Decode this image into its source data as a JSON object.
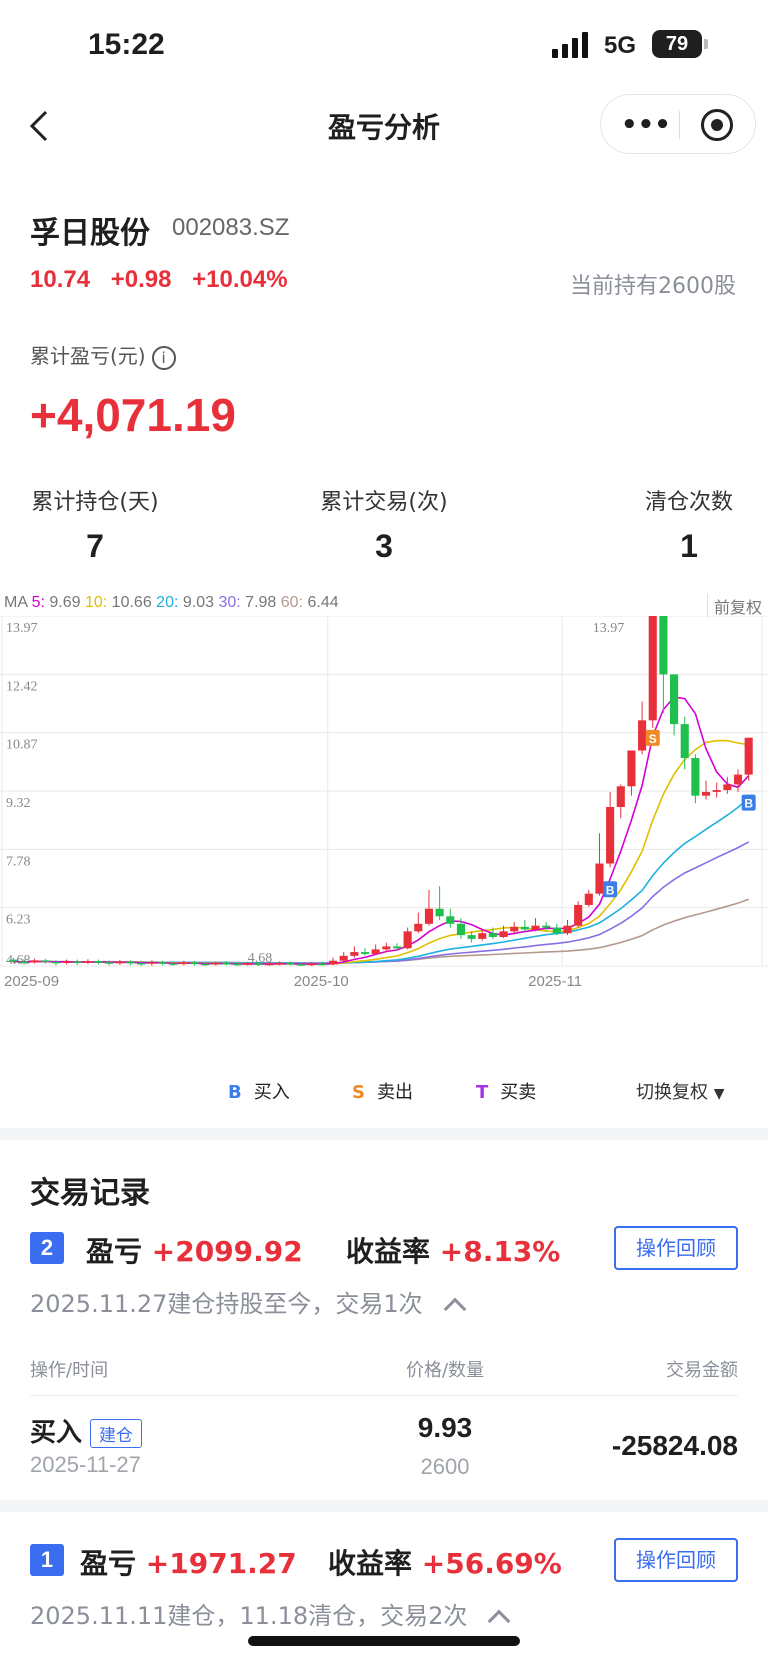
{
  "status_bar": {
    "time": "15:22",
    "network": "5G",
    "battery": "79"
  },
  "nav": {
    "title": "盈亏分析"
  },
  "stock": {
    "name": "孚日股份",
    "code": "002083.SZ",
    "price": "10.74",
    "change": "+0.98",
    "change_pct": "+10.04%",
    "holding": "当前持有2600股"
  },
  "pl": {
    "label": "累计盈亏(元)",
    "value": "+4,071.19"
  },
  "stats": [
    {
      "label": "累计持仓(天)",
      "value": "7"
    },
    {
      "label": "累计交易(次)",
      "value": "3"
    },
    {
      "label": "清仓次数",
      "value": "1"
    }
  ],
  "ma": {
    "prefix": "MA",
    "items": [
      {
        "key": "5:",
        "value": "9.69",
        "color": "#d400d4"
      },
      {
        "key": "10:",
        "value": "10.66",
        "color": "#e0c000"
      },
      {
        "key": "20:",
        "value": "9.03",
        "color": "#1fb0e0"
      },
      {
        "key": "30:",
        "value": "7.98",
        "color": "#8a6ee6"
      },
      {
        "key": "60:",
        "value": "6.44",
        "color": "#b39a8f"
      }
    ],
    "adjust_label": "前复权"
  },
  "chart_data": {
    "type": "candlestick",
    "y_ticks": [
      "13.97",
      "12.42",
      "10.87",
      "9.32",
      "7.78",
      "6.23",
      "4.68"
    ],
    "x_ticks": [
      "2025-09",
      "2025-10",
      "2025-11"
    ],
    "max_label": "13.97",
    "min_label": "4.68",
    "ylim": [
      4.68,
      13.97
    ],
    "colors": {
      "up": "#e8303b",
      "down": "#1fbf4d",
      "buy": "#3a7ee8",
      "sell": "#f08a24"
    },
    "candles": [
      [
        4.85,
        4.8,
        4.9,
        4.75
      ],
      [
        4.8,
        4.78,
        4.86,
        4.72
      ],
      [
        4.78,
        4.83,
        4.88,
        4.74
      ],
      [
        4.83,
        4.79,
        4.87,
        4.74
      ],
      [
        4.79,
        4.76,
        4.84,
        4.7
      ],
      [
        4.76,
        4.8,
        4.85,
        4.72
      ],
      [
        4.8,
        4.77,
        4.85,
        4.71
      ],
      [
        4.77,
        4.81,
        4.86,
        4.73
      ],
      [
        4.81,
        4.78,
        4.85,
        4.72
      ],
      [
        4.78,
        4.75,
        4.83,
        4.7
      ],
      [
        4.75,
        4.79,
        4.84,
        4.71
      ],
      [
        4.79,
        4.76,
        4.83,
        4.7
      ],
      [
        4.76,
        4.74,
        4.82,
        4.68
      ],
      [
        4.74,
        4.78,
        4.83,
        4.69
      ],
      [
        4.78,
        4.75,
        4.82,
        4.7
      ],
      [
        4.75,
        4.73,
        4.8,
        4.69
      ],
      [
        4.73,
        4.77,
        4.82,
        4.7
      ],
      [
        4.77,
        4.74,
        4.81,
        4.69
      ],
      [
        4.74,
        4.72,
        4.79,
        4.68
      ],
      [
        4.72,
        4.76,
        4.8,
        4.69
      ],
      [
        4.76,
        4.74,
        4.81,
        4.7
      ],
      [
        4.74,
        4.71,
        4.78,
        4.68
      ],
      [
        4.71,
        4.75,
        4.79,
        4.69
      ],
      [
        4.75,
        4.72,
        4.79,
        4.68
      ],
      [
        4.72,
        4.74,
        4.8,
        4.69
      ],
      [
        4.74,
        4.76,
        4.81,
        4.7
      ],
      [
        4.76,
        4.73,
        4.8,
        4.7
      ],
      [
        4.73,
        4.7,
        4.78,
        4.68
      ],
      [
        4.7,
        4.74,
        4.78,
        4.68
      ],
      [
        4.74,
        4.72,
        4.8,
        4.69
      ],
      [
        4.72,
        4.82,
        4.9,
        4.7
      ],
      [
        4.82,
        4.95,
        5.05,
        4.8
      ],
      [
        4.95,
        5.05,
        5.2,
        4.9
      ],
      [
        5.05,
        5.0,
        5.15,
        4.95
      ],
      [
        5.0,
        5.12,
        5.25,
        4.98
      ],
      [
        5.12,
        5.2,
        5.3,
        5.05
      ],
      [
        5.2,
        5.15,
        5.28,
        5.1
      ],
      [
        5.15,
        5.6,
        5.7,
        5.12
      ],
      [
        5.6,
        5.8,
        6.1,
        5.55
      ],
      [
        5.8,
        6.2,
        6.7,
        5.75
      ],
      [
        6.2,
        6.0,
        6.8,
        5.9
      ],
      [
        6.0,
        5.8,
        6.2,
        5.7
      ],
      [
        5.8,
        5.5,
        5.95,
        5.4
      ],
      [
        5.5,
        5.4,
        5.6,
        5.3
      ],
      [
        5.4,
        5.55,
        5.65,
        5.35
      ],
      [
        5.55,
        5.45,
        5.7,
        5.4
      ],
      [
        5.45,
        5.6,
        5.75,
        5.42
      ],
      [
        5.6,
        5.72,
        5.85,
        5.55
      ],
      [
        5.72,
        5.65,
        5.9,
        5.6
      ],
      [
        5.65,
        5.75,
        5.95,
        5.6
      ],
      [
        5.75,
        5.7,
        5.85,
        5.62
      ],
      [
        5.7,
        5.55,
        5.8,
        5.5
      ],
      [
        5.55,
        5.75,
        5.9,
        5.5
      ],
      [
        5.75,
        6.3,
        6.4,
        5.7
      ],
      [
        6.3,
        6.6,
        6.7,
        6.25
      ],
      [
        6.6,
        7.4,
        8.2,
        6.55
      ],
      [
        7.4,
        8.9,
        9.3,
        7.3
      ],
      [
        8.9,
        9.45,
        9.5,
        8.6
      ],
      [
        9.45,
        10.4,
        10.4,
        9.2
      ],
      [
        10.4,
        11.2,
        11.7,
        10.3
      ],
      [
        11.2,
        13.97,
        13.97,
        11.0
      ],
      [
        13.97,
        12.42,
        13.97,
        11.4
      ],
      [
        12.42,
        11.1,
        12.3,
        10.8
      ],
      [
        11.1,
        10.2,
        11.3,
        9.9
      ],
      [
        10.2,
        9.2,
        10.3,
        9.0
      ],
      [
        9.2,
        9.3,
        9.6,
        9.1
      ],
      [
        9.3,
        9.35,
        9.55,
        9.15
      ],
      [
        9.35,
        9.5,
        9.7,
        9.25
      ],
      [
        9.5,
        9.76,
        9.9,
        9.3
      ],
      [
        9.76,
        10.74,
        10.74,
        9.6
      ]
    ],
    "markers": [
      {
        "label": "B",
        "index": 56,
        "kind": "buy"
      },
      {
        "label": "S",
        "index": 60,
        "kind": "sell"
      },
      {
        "label": "B",
        "index": 69,
        "kind": "buy"
      }
    ]
  },
  "legend": {
    "buy_key": "B",
    "buy": "买入",
    "sell_key": "S",
    "sell": "卖出",
    "trade_key": "T",
    "trade": "买卖",
    "switch": "切换复权"
  },
  "records": {
    "title": "交易记录",
    "trade2": {
      "badge": "2",
      "pl_label": "盈亏",
      "pl": "+2099.92",
      "rate_label": "收益率",
      "rate": "+8.13%",
      "review": "操作回顾",
      "summary": "2025.11.27建仓持股至今，交易1次"
    },
    "table_headers": {
      "op": "操作/时间",
      "price": "价格/数量",
      "amount": "交易金额"
    },
    "row": {
      "op": "买入",
      "tag": "建仓",
      "date": "2025-11-27",
      "price": "9.93",
      "qty": "2600",
      "amount": "-25824.08"
    },
    "trade1": {
      "badge": "1",
      "pl_label": "盈亏",
      "pl": "+1971.27",
      "rate_label": "收益率",
      "rate": "+56.69%",
      "review": "操作回顾",
      "summary": "2025.11.11建仓，11.18清仓，交易2次"
    }
  }
}
